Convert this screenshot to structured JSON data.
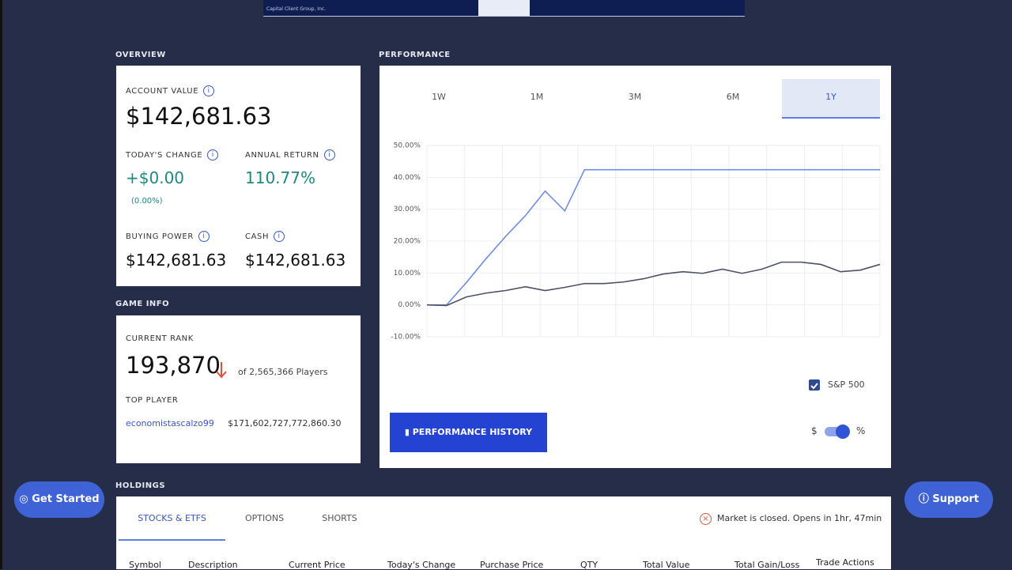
{
  "banner": {
    "caption": "Capital Client Group, Inc."
  },
  "overview": {
    "section_title": "OVERVIEW",
    "account_value_label": "ACCOUNT VALUE",
    "account_value": "$142,681.63",
    "todays_change_label": "TODAY'S CHANGE",
    "todays_change": "+$0.00",
    "todays_change_pct": "(0.00%)",
    "annual_return_label": "ANNUAL RETURN",
    "annual_return": "110.77%",
    "buying_power_label": "BUYING POWER",
    "buying_power": "$142,681.63",
    "cash_label": "CASH",
    "cash": "$142,681.63"
  },
  "game_info": {
    "section_title": "GAME INFO",
    "current_rank_label": "CURRENT RANK",
    "current_rank": "193,870",
    "players": "of 2,565,366 Players",
    "top_player_label": "TOP PLAYER",
    "top_player_name": "economistascalzo99",
    "top_player_value": "$171,602,727,772,860.30"
  },
  "performance": {
    "section_title": "PERFORMANCE",
    "tabs": [
      "1W",
      "1M",
      "3M",
      "6M",
      "1Y"
    ],
    "active_tab": 4,
    "history_button": "PERFORMANCE HISTORY",
    "toggle_left": "$",
    "toggle_right": "%",
    "chart": {
      "type": "line",
      "categories": [
        null,
        null,
        null,
        null,
        null,
        null,
        null,
        null,
        null,
        null,
        null,
        null,
        null,
        null,
        null,
        null,
        null,
        null,
        null,
        null,
        null,
        null,
        null,
        null
      ],
      "ylim": [
        -10,
        50
      ],
      "yticks": [
        {
          "value": -10,
          "label": "-10.00%"
        },
        {
          "value": 0,
          "label": "0.00%"
        },
        {
          "value": 10,
          "label": "10.00%"
        },
        {
          "value": 20,
          "label": "20.00%"
        },
        {
          "value": 30,
          "label": "30.00%"
        },
        {
          "value": 40,
          "label": "40.00%"
        },
        {
          "value": 50,
          "label": "50.00%"
        }
      ],
      "grid": true,
      "series": [
        {
          "color": "#6f8fe3",
          "values": [
            0,
            0,
            7,
            14.5,
            21.5,
            28,
            35.7,
            29.5,
            42.4,
            42.4,
            42.4,
            42.4,
            42.4,
            42.4,
            42.4,
            42.4,
            42.4,
            42.4,
            42.4,
            42.4,
            42.4,
            42.4,
            42.4,
            42.4
          ]
        },
        {
          "name": "S&P 500",
          "color": "#4b5168",
          "values": [
            0,
            -0.2,
            2.5,
            3.7,
            4.5,
            5.7,
            4.5,
            5.5,
            6.7,
            6.7,
            7.2,
            8.2,
            9.7,
            10.4,
            9.9,
            11.2,
            9.9,
            11.2,
            13.4,
            13.4,
            12.7,
            10.4,
            10.9,
            12.7
          ]
        }
      ]
    }
  },
  "holdings": {
    "section_title": "HOLDINGS",
    "tabs": [
      "STOCKS & ETFS",
      "OPTIONS",
      "SHORTS"
    ],
    "market_status": "Market is closed. Opens in 1hr, 47min",
    "columns": [
      "Symbol",
      "Description",
      "Current Price",
      "Today's Change",
      "Purchase Price",
      "QTY",
      "Total Value",
      "Total Gain/Loss",
      "Trade Actions"
    ]
  },
  "floating": {
    "get_started": "Get Started",
    "support": "Support"
  }
}
